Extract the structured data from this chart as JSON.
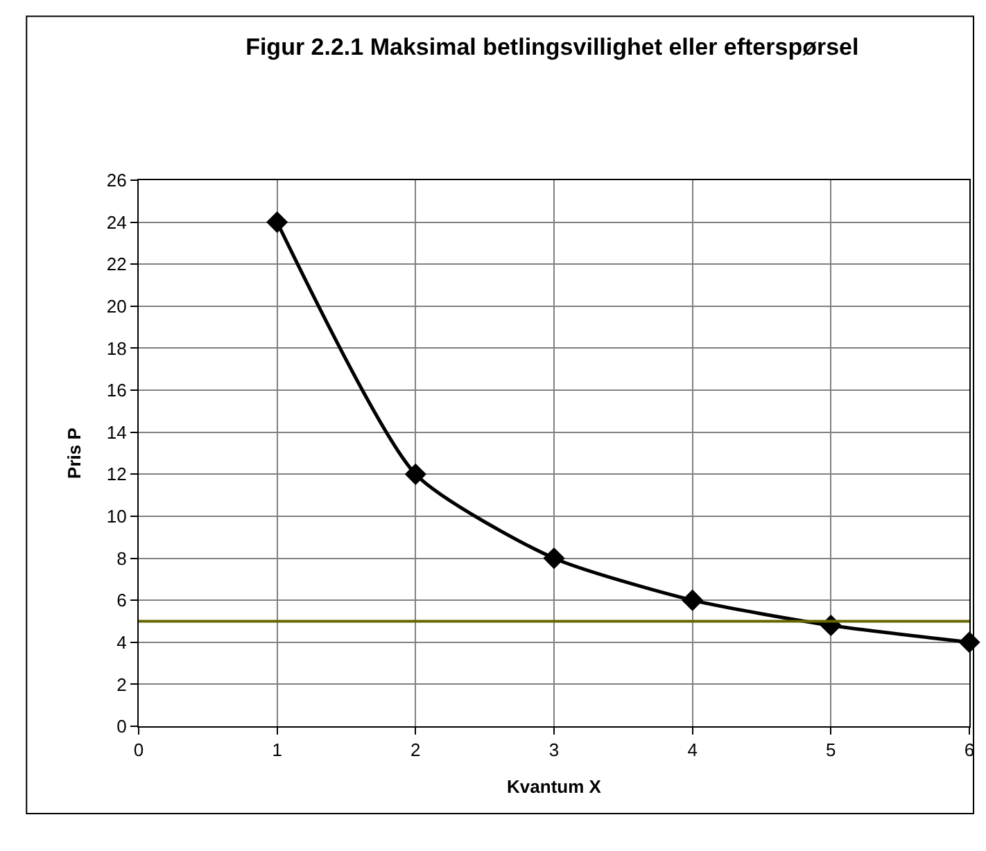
{
  "chart_data": {
    "type": "line",
    "title": "Figur 2.2.1 Maksimal betlingsvillighet eller efterspørsel",
    "xlabel": "Kvantum X",
    "ylabel": "Pris P",
    "x": [
      1,
      2,
      3,
      4,
      5,
      6
    ],
    "series": [
      {
        "color": "#000000",
        "values": [
          24,
          12,
          8,
          6,
          4.8,
          4
        ]
      }
    ],
    "xlim": [
      0,
      6
    ],
    "xticks": [
      0,
      1,
      2,
      3,
      4,
      5,
      6
    ],
    "ylim": [
      0,
      26
    ],
    "yticks": [
      0,
      2,
      4,
      6,
      8,
      10,
      12,
      14,
      16,
      18,
      20,
      22,
      24,
      26
    ],
    "ref_lines": [
      {
        "axis": "y",
        "value": 5,
        "color": "#666600",
        "line_style": "solid"
      }
    ],
    "grid": true,
    "marker": "diamond",
    "line_style": "solid"
  }
}
